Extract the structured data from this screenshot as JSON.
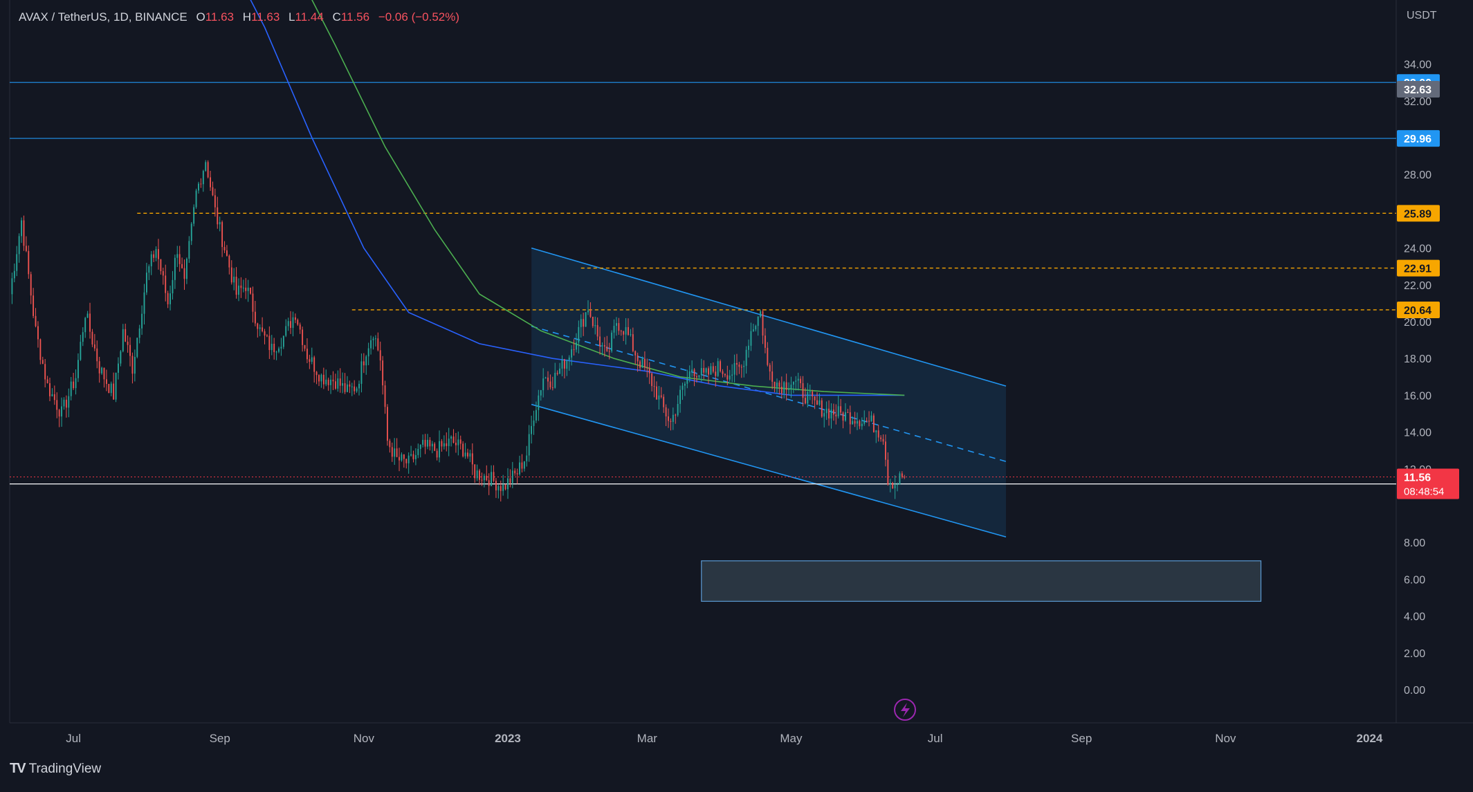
{
  "header": {
    "symbol": "AVAX / TetherUS, 1D, BINANCE",
    "open_label": "O",
    "open": "11.63",
    "high_label": "H",
    "high": "11.63",
    "low_label": "L",
    "low": "11.44",
    "close_label": "C",
    "close": "11.56",
    "change": "−0.06 (−0.52%)"
  },
  "axis_currency": "USDT",
  "branding": {
    "name": "TradingView"
  },
  "colors": {
    "background": "#131722",
    "bull": "#26a69a",
    "bear": "#ef5350",
    "channel": "#2196f3",
    "ma_blue": "#2962ff",
    "ma_green": "#4caf50",
    "resistance": "#f7a600",
    "price_badge": "#f23645"
  },
  "chart_data": {
    "type": "candlestick",
    "title": "AVAX / TetherUS, 1D, BINANCE",
    "ylim": [
      -2,
      36
    ],
    "y_ticks": [
      "0.00",
      "2.00",
      "4.00",
      "6.00",
      "8.00",
      "12.00",
      "14.00",
      "16.00",
      "18.00",
      "20.00",
      "22.00",
      "24.00",
      "28.00",
      "32.00",
      "34.00"
    ],
    "x_ticks": [
      {
        "label": "Jul",
        "date": "2022-07-01"
      },
      {
        "label": "Sep",
        "date": "2022-09-01"
      },
      {
        "label": "Nov",
        "date": "2022-11-01"
      },
      {
        "label": "2023",
        "date": "2023-01-01"
      },
      {
        "label": "Mar",
        "date": "2023-03-01"
      },
      {
        "label": "May",
        "date": "2023-05-01"
      },
      {
        "label": "Jul",
        "date": "2023-07-01"
      },
      {
        "label": "Sep",
        "date": "2023-09-01"
      },
      {
        "label": "Nov",
        "date": "2023-11-01"
      },
      {
        "label": "2024",
        "date": "2024-01-01"
      }
    ],
    "x_range": [
      "2022-06-04",
      "2024-01-12"
    ],
    "price_path": [
      [
        "2022-06-04",
        21.5
      ],
      [
        "2022-06-09",
        25.5
      ],
      [
        "2022-06-15",
        19.5
      ],
      [
        "2022-06-20",
        16.5
      ],
      [
        "2022-06-26",
        15.0
      ],
      [
        "2022-07-02",
        17.0
      ],
      [
        "2022-07-06",
        20.5
      ],
      [
        "2022-07-12",
        17.5
      ],
      [
        "2022-07-18",
        16.0
      ],
      [
        "2022-07-22",
        19.5
      ],
      [
        "2022-07-26",
        17.5
      ],
      [
        "2022-08-01",
        22.5
      ],
      [
        "2022-08-05",
        24.0
      ],
      [
        "2022-08-10",
        21.0
      ],
      [
        "2022-08-14",
        24.0
      ],
      [
        "2022-08-17",
        22.0
      ],
      [
        "2022-08-22",
        27.0
      ],
      [
        "2022-08-26",
        28.8
      ],
      [
        "2022-08-30",
        26.0
      ],
      [
        "2022-09-04",
        23.5
      ],
      [
        "2022-09-08",
        21.5
      ],
      [
        "2022-09-12",
        22.0
      ],
      [
        "2022-09-18",
        19.5
      ],
      [
        "2022-09-23",
        18.5
      ],
      [
        "2022-09-28",
        19.2
      ],
      [
        "2022-10-03",
        20.5
      ],
      [
        "2022-10-08",
        18.2
      ],
      [
        "2022-10-14",
        17.0
      ],
      [
        "2022-10-20",
        16.8
      ],
      [
        "2022-10-25",
        16.2
      ],
      [
        "2022-10-29",
        16.5
      ],
      [
        "2022-11-02",
        18.5
      ],
      [
        "2022-11-05",
        19.5
      ],
      [
        "2022-11-08",
        18.0
      ],
      [
        "2022-11-11",
        13.5
      ],
      [
        "2022-11-15",
        12.5
      ],
      [
        "2022-11-20",
        12.3
      ],
      [
        "2022-11-26",
        13.2
      ],
      [
        "2022-12-02",
        13.0
      ],
      [
        "2022-12-08",
        13.5
      ],
      [
        "2022-12-14",
        13.0
      ],
      [
        "2022-12-18",
        11.8
      ],
      [
        "2022-12-24",
        11.5
      ],
      [
        "2022-12-30",
        11.0
      ],
      [
        "2023-01-05",
        11.8
      ],
      [
        "2023-01-09",
        12.8
      ],
      [
        "2023-01-12",
        15.0
      ],
      [
        "2023-01-16",
        17.0
      ],
      [
        "2023-01-20",
        16.8
      ],
      [
        "2023-01-26",
        18.0
      ],
      [
        "2023-01-31",
        19.5
      ],
      [
        "2023-02-04",
        20.8
      ],
      [
        "2023-02-08",
        19.2
      ],
      [
        "2023-02-12",
        18.0
      ],
      [
        "2023-02-16",
        20.0
      ],
      [
        "2023-02-20",
        19.5
      ],
      [
        "2023-02-25",
        18.0
      ],
      [
        "2023-03-02",
        17.0
      ],
      [
        "2023-03-07",
        15.5
      ],
      [
        "2023-03-11",
        14.5
      ],
      [
        "2023-03-15",
        16.0
      ],
      [
        "2023-03-20",
        17.5
      ],
      [
        "2023-03-25",
        17.0
      ],
      [
        "2023-03-31",
        17.5
      ],
      [
        "2023-04-05",
        17.2
      ],
      [
        "2023-04-10",
        17.5
      ],
      [
        "2023-04-14",
        19.5
      ],
      [
        "2023-04-18",
        20.5
      ],
      [
        "2023-04-21",
        17.5
      ],
      [
        "2023-04-26",
        16.5
      ],
      [
        "2023-05-02",
        16.8
      ],
      [
        "2023-05-07",
        16.0
      ],
      [
        "2023-05-11",
        15.5
      ],
      [
        "2023-05-15",
        15.2
      ],
      [
        "2023-05-21",
        15.0
      ],
      [
        "2023-05-28",
        14.8
      ],
      [
        "2023-06-04",
        14.5
      ],
      [
        "2023-06-09",
        13.8
      ],
      [
        "2023-06-11",
        11.5
      ],
      [
        "2023-06-14",
        11.2
      ],
      [
        "2023-06-17",
        11.6
      ],
      [
        "2023-06-18",
        11.56
      ]
    ],
    "moving_averages": [
      {
        "color": "#2962ff",
        "points": [
          [
            "2022-09-04",
            40.0
          ],
          [
            "2022-09-20",
            36.0
          ],
          [
            "2022-10-10",
            30.0
          ],
          [
            "2022-11-01",
            24.0
          ],
          [
            "2022-11-20",
            20.5
          ],
          [
            "2022-12-20",
            18.8
          ],
          [
            "2023-01-20",
            18.0
          ],
          [
            "2023-03-01",
            17.3
          ],
          [
            "2023-04-01",
            16.5
          ],
          [
            "2023-05-01",
            16.0
          ],
          [
            "2023-06-18",
            16.0
          ]
        ]
      },
      {
        "color": "#4caf50",
        "points": [
          [
            "2022-09-30",
            40.0
          ],
          [
            "2022-10-20",
            35.0
          ],
          [
            "2022-11-10",
            29.5
          ],
          [
            "2022-12-01",
            25.0
          ],
          [
            "2022-12-20",
            21.5
          ],
          [
            "2023-01-15",
            19.5
          ],
          [
            "2023-02-15",
            18.0
          ],
          [
            "2023-03-15",
            17.0
          ],
          [
            "2023-04-15",
            16.5
          ],
          [
            "2023-05-15",
            16.2
          ],
          [
            "2023-06-18",
            16.0
          ]
        ]
      }
    ],
    "horizontal_levels": [
      {
        "value": 33.0,
        "label": "33.00",
        "style": "solid",
        "color": "#2196f3",
        "badge_bg": "#2196f3",
        "badge_fg": "#ffffff",
        "from": "2022-06-04"
      },
      {
        "value": 32.63,
        "label": "32.63",
        "style": "none",
        "color": "#9598a1",
        "badge_bg": "#636a7a",
        "badge_fg": "#ffffff",
        "from": "2022-06-04"
      },
      {
        "value": 29.96,
        "label": "29.96",
        "style": "solid",
        "color": "#2196f3",
        "badge_bg": "#2196f3",
        "badge_fg": "#ffffff",
        "from": "2022-06-04"
      },
      {
        "value": 25.89,
        "label": "25.89",
        "style": "dashed",
        "color": "#f7a600",
        "badge_bg": "#f7a600",
        "badge_fg": "#131722",
        "from": "2022-07-28"
      },
      {
        "value": 22.91,
        "label": "22.91",
        "style": "dashed",
        "color": "#f7a600",
        "badge_bg": "#f7a600",
        "badge_fg": "#131722",
        "from": "2023-02-01"
      },
      {
        "value": 20.64,
        "label": "20.64",
        "style": "dashed",
        "color": "#f7a600",
        "badge_bg": "#f7a600",
        "badge_fg": "#131722",
        "from": "2022-10-27"
      },
      {
        "value": 11.18,
        "label": "11.18",
        "style": "solid",
        "color": "#ffffff",
        "badge_bg": "#ffffff",
        "badge_fg": "#131722",
        "from": "2022-06-04"
      }
    ],
    "last_price": {
      "value": 11.56,
      "label": "11.56",
      "countdown": "08:48:54"
    },
    "channel": {
      "start": "2023-01-11",
      "end": "2023-07-31",
      "upper": [
        24.0,
        16.5
      ],
      "lower": [
        15.5,
        8.3
      ],
      "mid": [
        19.75,
        12.4
      ]
    },
    "target_zone": {
      "start": "2023-03-24",
      "end": "2023-11-16",
      "top": 7.0,
      "bottom": 4.8
    }
  }
}
